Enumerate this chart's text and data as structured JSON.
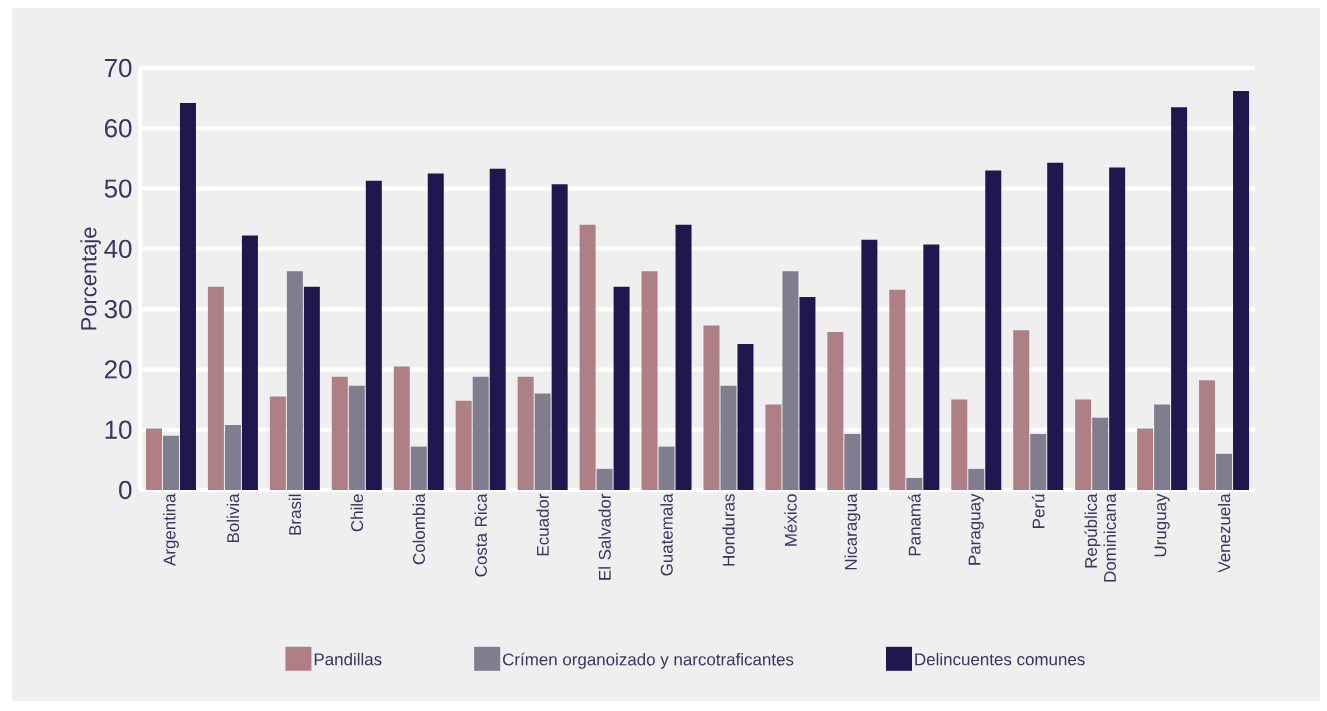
{
  "chart_data": {
    "type": "bar",
    "ylabel": "Porcentaje",
    "categories": [
      "Argentina",
      "Bolivia",
      "Brasil",
      "Chile",
      "Colombia",
      "Costa Rica",
      "Ecuador",
      "El Salvador",
      "Guatemala",
      "Honduras",
      "México",
      "Nicaragua",
      "Panamá",
      "Paraguay",
      "Perú",
      "República Dominicana",
      "Uruguay",
      "Venezuela"
    ],
    "series": [
      {
        "name": "Pandillas",
        "color": "#ae7f84",
        "values": [
          10.2,
          33.7,
          15.5,
          18.8,
          20.5,
          14.8,
          18.8,
          44,
          36.3,
          27.3,
          14.2,
          26.2,
          33.2,
          15,
          26.5,
          15,
          10.2,
          18.2
        ]
      },
      {
        "name": "Crímen organoizado y narcotraficantes",
        "color": "#807d8e",
        "values": [
          9,
          10.8,
          36.3,
          17.3,
          7.2,
          18.8,
          16,
          3.5,
          7.2,
          17.3,
          36.3,
          9.3,
          2,
          3.5,
          9.3,
          12,
          14.2,
          6
        ]
      },
      {
        "name": "Delincuentes comunes",
        "color": "#21174f",
        "values": [
          64.2,
          42.2,
          33.7,
          51.3,
          52.5,
          53.3,
          50.7,
          33.7,
          44,
          24.2,
          32,
          41.5,
          40.7,
          53,
          54.3,
          53.5,
          63.5,
          66.2
        ]
      }
    ],
    "ylim": [
      0,
      70
    ],
    "yticks": [
      0,
      10,
      20,
      30,
      40,
      50,
      60,
      70
    ],
    "grid": "y",
    "legend": "bottom"
  }
}
